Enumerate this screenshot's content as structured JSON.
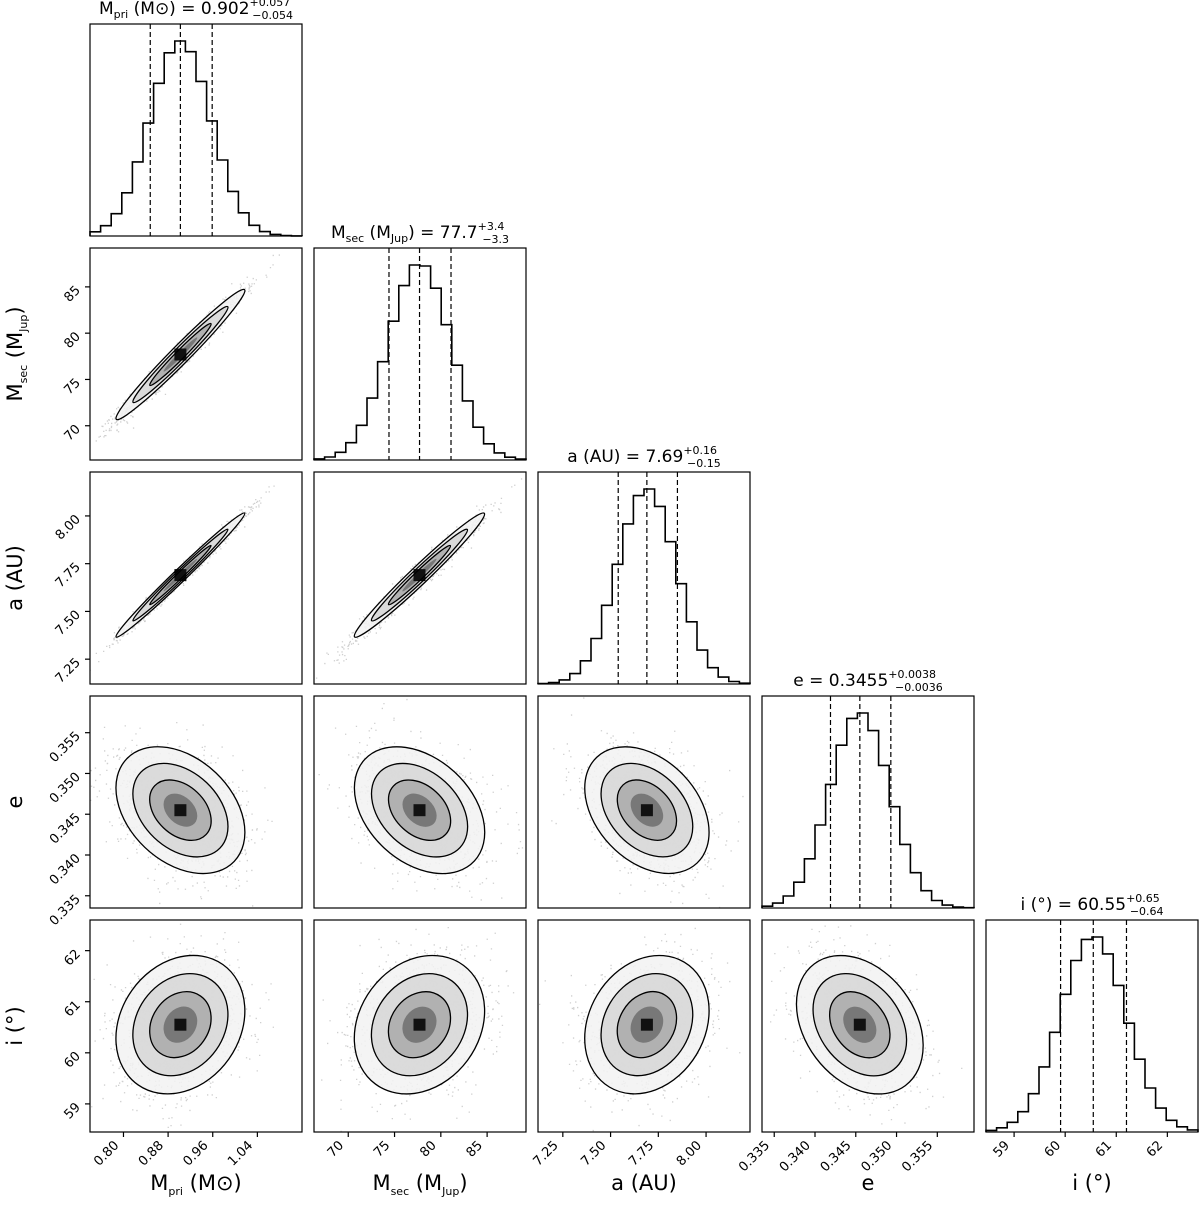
{
  "chart_data": {
    "type": "corner",
    "parameters": [
      {
        "id": "mpri",
        "label_main": "M",
        "label_sub": "pri",
        "label_tail": " (M⊙)",
        "title_prefix": "M",
        "title_sub": "pri",
        "title_rest": " (M⊙) = 0.902",
        "median": 0.902,
        "plus": 0.057,
        "minus": 0.054,
        "plus_text": "+0.057",
        "minus_text": "−0.054",
        "range": [
          0.74,
          1.12
        ],
        "ticks": [
          0.8,
          0.88,
          0.96,
          1.04
        ],
        "tick_labels": [
          "0.80",
          "0.88",
          "0.96",
          "1.04"
        ],
        "sigma": 0.055
      },
      {
        "id": "msec",
        "label_main": "M",
        "label_sub": "sec",
        "label_tail": " (M",
        "label_sub2": "Jup",
        "label_tail2": ")",
        "title_prefix": "M",
        "title_sub": "sec",
        "title_rest": " (M",
        "title_sub2": "Jup",
        "title_rest2": ") = 77.7",
        "median": 77.7,
        "plus": 3.4,
        "minus": 3.3,
        "plus_text": "+3.4",
        "minus_text": "−3.3",
        "range": [
          66.3,
          89.2
        ],
        "ticks": [
          70,
          75,
          80,
          85
        ],
        "tick_labels": [
          "70",
          "75",
          "80",
          "85"
        ],
        "sigma": 3.35
      },
      {
        "id": "a",
        "label_main": "a (AU)",
        "title_prefix": "a (AU) = 7.69",
        "median": 7.69,
        "plus": 0.16,
        "minus": 0.15,
        "plus_text": "+0.16",
        "minus_text": "−0.15",
        "range": [
          7.12,
          8.23
        ],
        "ticks": [
          7.25,
          7.5,
          7.75,
          8.0
        ],
        "tick_labels": [
          "7.25",
          "7.50",
          "7.75",
          "8.00"
        ],
        "sigma": 0.155
      },
      {
        "id": "e",
        "label_main": "e",
        "title_prefix": "e = 0.3455",
        "median": 0.3455,
        "plus": 0.0038,
        "minus": 0.0036,
        "plus_text": "+0.0038",
        "minus_text": "−0.0036",
        "range": [
          0.3335,
          0.3595
        ],
        "ticks": [
          0.335,
          0.34,
          0.345,
          0.35,
          0.355
        ],
        "tick_labels": [
          "0.335",
          "0.340",
          "0.345",
          "0.350",
          "0.355"
        ],
        "sigma": 0.0037
      },
      {
        "id": "i",
        "label_main": "i (°)",
        "title_prefix": "i (°) = 60.55",
        "median": 60.55,
        "plus": 0.65,
        "minus": 0.64,
        "plus_text": "+0.65",
        "minus_text": "−0.64",
        "range": [
          58.45,
          62.6
        ],
        "ticks": [
          59,
          60,
          61,
          62
        ],
        "tick_labels": [
          "59",
          "60",
          "61",
          "62"
        ],
        "sigma": 0.645
      }
    ],
    "correlations": {
      "mpri-msec": 0.98,
      "mpri-a": 0.99,
      "msec-a": 0.98,
      "mpri-e": -0.35,
      "msec-e": -0.35,
      "a-e": -0.35,
      "mpri-i": 0.2,
      "msec-i": 0.2,
      "a-i": 0.2,
      "e-i": -0.3
    },
    "quantile_lines": "16th, 50th, 84th percentiles (dashed)",
    "colors": {
      "line": "#000000",
      "points": "#a0a0a0"
    }
  }
}
